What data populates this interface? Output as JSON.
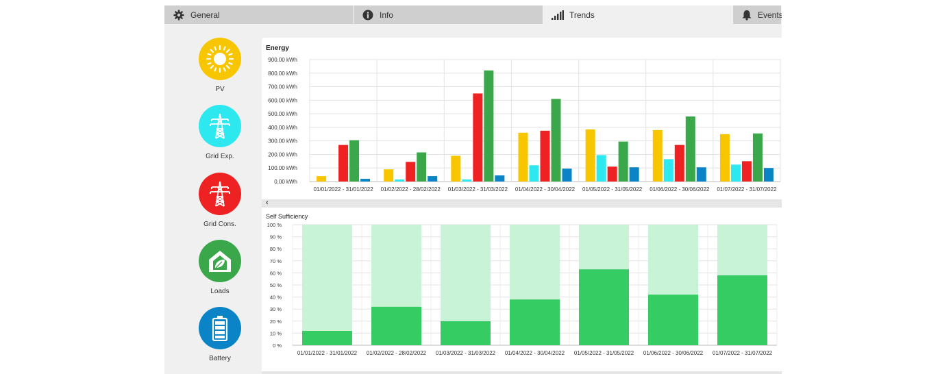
{
  "tabs": [
    {
      "label": "General",
      "icon": "gear-icon",
      "active": false
    },
    {
      "label": "Info",
      "icon": "info-icon",
      "active": false
    },
    {
      "label": "Trends",
      "icon": "signal-bars-icon",
      "active": true
    },
    {
      "label": "Events",
      "icon": "bell-icon",
      "active": false
    }
  ],
  "sidebar": {
    "items": [
      {
        "label": "PV",
        "icon": "sun-icon",
        "color": "#f7c600"
      },
      {
        "label": "Grid Exp.",
        "icon": "power-pylon-icon",
        "color": "#2ee8f0"
      },
      {
        "label": "Grid Cons.",
        "icon": "power-pylon-icon",
        "color": "#ee2222"
      },
      {
        "label": "Loads",
        "icon": "house-leaf-icon",
        "color": "#3aa84a"
      },
      {
        "label": "Battery",
        "icon": "battery-icon",
        "color": "#0a84c6"
      }
    ]
  },
  "chart_data": [
    {
      "type": "bar",
      "title": "Energy",
      "categories": [
        "01/01/2022 - 31/01/2022",
        "01/02/2022 - 28/02/2022",
        "01/03/2022 - 31/03/2022",
        "01/04/2022 - 30/04/2022",
        "01/05/2022 - 31/05/2022",
        "01/06/2022 - 30/06/2022",
        "01/07/2022 - 31/07/2022"
      ],
      "yticks": [
        "900.00 kWh",
        "800.00 kWh",
        "700.00 kWh",
        "600.00 kWh",
        "500.00 kWh",
        "400.00 kWh",
        "300.00 kWh",
        "200.00 kWh",
        "100.00 kWh",
        "0.00 kWh"
      ],
      "ylim": [
        0,
        900
      ],
      "grid": true,
      "series": [
        {
          "color": "#f7c600",
          "values": [
            40,
            90,
            190,
            360,
            385,
            380,
            350
          ]
        },
        {
          "color": "#2ee8f0",
          "values": [
            0,
            15,
            15,
            120,
            195,
            165,
            125
          ]
        },
        {
          "color": "#ee2222",
          "values": [
            270,
            145,
            650,
            375,
            110,
            270,
            150
          ]
        },
        {
          "color": "#3aa84a",
          "values": [
            305,
            215,
            820,
            610,
            295,
            480,
            355
          ]
        },
        {
          "color": "#0a84c6",
          "values": [
            20,
            40,
            45,
            95,
            105,
            105,
            100
          ]
        }
      ]
    },
    {
      "type": "bar",
      "title": "Self Sufficiency",
      "categories": [
        "01/01/2022 - 31/01/2022",
        "01/02/2022 - 28/02/2022",
        "01/03/2022 - 31/03/2022",
        "01/04/2022 - 30/04/2022",
        "01/05/2022 - 31/05/2022",
        "01/06/2022 - 30/06/2022",
        "01/07/2022 - 31/07/2022"
      ],
      "yticks": [
        "100 %",
        "90 %",
        "80 %",
        "70 %",
        "60 %",
        "50 %",
        "40 %",
        "30 %",
        "20 %",
        "10 %",
        "0 %"
      ],
      "ylim": [
        0,
        100
      ],
      "grid": true,
      "stacked": true,
      "series": [
        {
          "color": "#35cc63",
          "values": [
            12,
            32,
            20,
            38,
            63,
            42,
            58
          ]
        },
        {
          "color": "#c8f3d6",
          "values": [
            88,
            68,
            80,
            62,
            37,
            58,
            42
          ]
        }
      ]
    }
  ]
}
